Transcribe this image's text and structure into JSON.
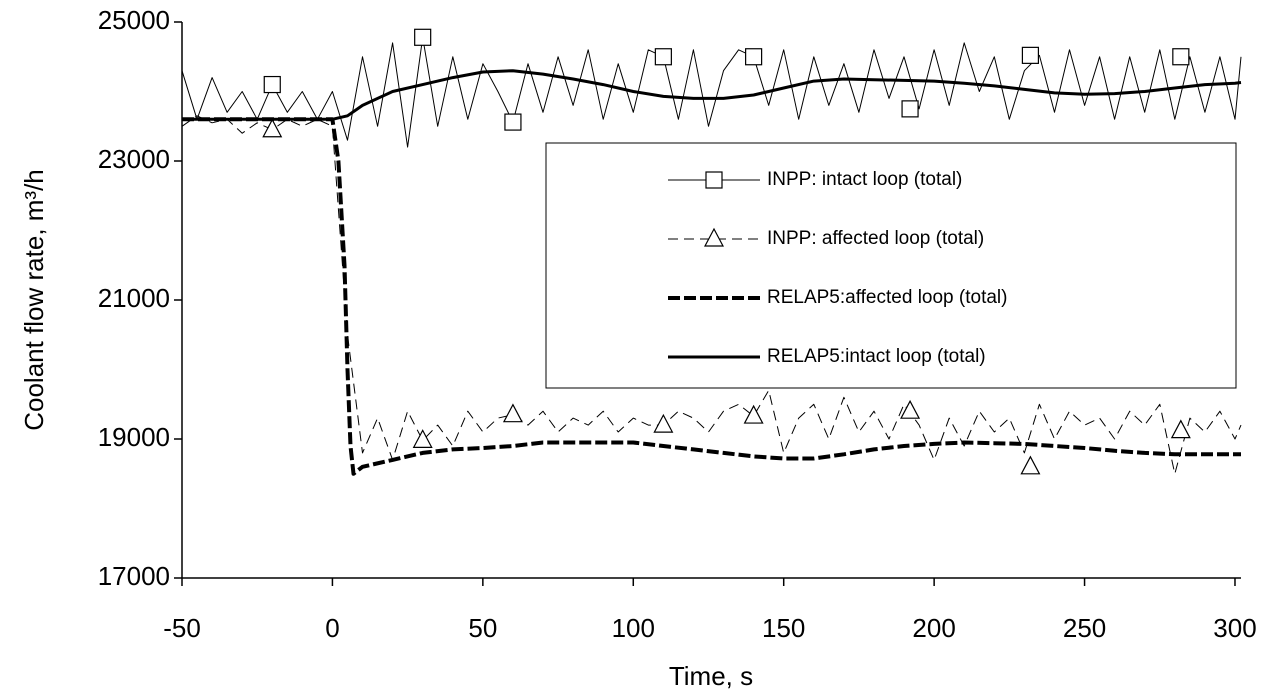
{
  "chart_data": {
    "type": "line",
    "xlabel": "Time, s",
    "ylabel": "Coolant flow rate, m³/h",
    "xlim": [
      -50,
      302
    ],
    "ylim": [
      17000,
      25000
    ],
    "xticks": [
      -50,
      0,
      50,
      100,
      150,
      200,
      250,
      300
    ],
    "yticks": [
      17000,
      19000,
      21000,
      23000,
      25000
    ],
    "grid": false,
    "legend": "right",
    "series": [
      {
        "name": "INPP: intact loop (total)",
        "color": "#000000",
        "width": 1,
        "dash": "none",
        "marker": "square",
        "x": [
          -50,
          -45,
          -40,
          -35,
          -30,
          -25,
          -20,
          -15,
          -10,
          -5,
          0,
          5,
          10,
          15,
          20,
          25,
          30,
          35,
          40,
          45,
          50,
          55,
          60,
          65,
          70,
          75,
          80,
          85,
          90,
          95,
          100,
          105,
          110,
          115,
          120,
          125,
          130,
          135,
          140,
          145,
          150,
          155,
          160,
          165,
          170,
          175,
          180,
          185,
          190,
          195,
          200,
          205,
          210,
          215,
          220,
          225,
          230,
          235,
          240,
          245,
          250,
          255,
          260,
          265,
          270,
          275,
          280,
          285,
          290,
          295,
          300,
          302
        ],
        "values": [
          24300,
          23600,
          24200,
          23700,
          24000,
          23600,
          24100,
          23700,
          24000,
          23600,
          24000,
          23300,
          24500,
          23500,
          24700,
          23200,
          24780,
          23500,
          24500,
          23600,
          24400,
          24000,
          23560,
          24400,
          23700,
          24500,
          23800,
          24600,
          23600,
          24400,
          23700,
          24600,
          24500,
          23600,
          24600,
          23500,
          24300,
          24600,
          24500,
          23800,
          24600,
          23600,
          24500,
          23800,
          24400,
          23700,
          24600,
          23900,
          24500,
          23750,
          24600,
          23800,
          24700,
          24000,
          24500,
          23600,
          24300,
          24520,
          23700,
          24600,
          23800,
          24500,
          23600,
          24500,
          23700,
          24600,
          23600,
          24500,
          23700,
          24500,
          23600,
          24500
        ],
        "markers": {
          "x": [
            -20,
            30,
            60,
            110,
            140,
            192,
            232,
            282
          ],
          "values": [
            24100,
            24780,
            23560,
            24500,
            24500,
            23750,
            24520,
            24500
          ]
        }
      },
      {
        "name": "INPP: affected loop (total)",
        "color": "#000000",
        "width": 1,
        "dash": "10 6",
        "marker": "triangle",
        "x": [
          -50,
          -45,
          -40,
          -35,
          -30,
          -25,
          -20,
          -15,
          -10,
          -5,
          0,
          5,
          10,
          15,
          20,
          25,
          30,
          35,
          40,
          45,
          50,
          55,
          60,
          65,
          70,
          75,
          80,
          85,
          90,
          95,
          100,
          105,
          110,
          115,
          120,
          125,
          130,
          135,
          140,
          145,
          150,
          155,
          160,
          165,
          170,
          175,
          180,
          185,
          190,
          195,
          200,
          205,
          210,
          215,
          220,
          225,
          230,
          235,
          240,
          245,
          250,
          255,
          260,
          265,
          270,
          275,
          280,
          285,
          290,
          295,
          300,
          302
        ],
        "values": [
          23500,
          23650,
          23550,
          23600,
          23400,
          23550,
          23450,
          23600,
          23500,
          23600,
          23500,
          20500,
          18800,
          19300,
          18700,
          19400,
          18980,
          19200,
          18900,
          19400,
          19100,
          19300,
          19350,
          19200,
          19400,
          19100,
          19300,
          19200,
          19400,
          19100,
          19300,
          19200,
          19200,
          19400,
          19300,
          19100,
          19400,
          19500,
          19330,
          19700,
          18800,
          19300,
          19500,
          19000,
          19600,
          19100,
          19400,
          19000,
          19500,
          19200,
          18700,
          19300,
          18900,
          19400,
          19100,
          19300,
          18800,
          19500,
          19000,
          19400,
          19200,
          19300,
          19000,
          19400,
          19200,
          19500,
          18500,
          19300,
          19100,
          19400,
          19000,
          19200
        ],
        "markers": {
          "x": [
            -20,
            30,
            60,
            110,
            140,
            192,
            232,
            282
          ],
          "values": [
            23450,
            18980,
            19350,
            19200,
            19330,
            19400,
            18600,
            19120
          ]
        }
      },
      {
        "name": "RELAP5:affected loop (total)",
        "color": "#000000",
        "width": 4,
        "dash": "12 4",
        "marker": "none",
        "x": [
          -50,
          -25,
          0,
          2,
          4,
          5,
          6,
          7,
          10,
          20,
          30,
          40,
          50,
          60,
          70,
          80,
          90,
          100,
          110,
          120,
          130,
          140,
          150,
          160,
          170,
          180,
          190,
          200,
          210,
          220,
          230,
          240,
          250,
          260,
          270,
          280,
          290,
          300,
          302
        ],
        "values": [
          23600,
          23600,
          23600,
          23000,
          21500,
          20000,
          18900,
          18500,
          18600,
          18700,
          18800,
          18850,
          18870,
          18900,
          18950,
          18950,
          18950,
          18950,
          18900,
          18850,
          18800,
          18750,
          18720,
          18720,
          18780,
          18850,
          18900,
          18930,
          18950,
          18940,
          18930,
          18900,
          18870,
          18830,
          18800,
          18780,
          18780,
          18780,
          18780
        ]
      },
      {
        "name": "RELAP5:intact loop (total)",
        "color": "#000000",
        "width": 3,
        "dash": "none",
        "marker": "none",
        "x": [
          -50,
          -25,
          0,
          5,
          10,
          20,
          30,
          40,
          50,
          60,
          70,
          80,
          90,
          100,
          110,
          120,
          130,
          140,
          150,
          160,
          170,
          180,
          190,
          200,
          210,
          220,
          230,
          240,
          250,
          260,
          270,
          280,
          290,
          300,
          302
        ],
        "values": [
          23600,
          23600,
          23600,
          23650,
          23800,
          24000,
          24100,
          24200,
          24280,
          24300,
          24250,
          24180,
          24100,
          24000,
          23930,
          23900,
          23900,
          23950,
          24050,
          24150,
          24180,
          24170,
          24160,
          24150,
          24120,
          24080,
          24030,
          23980,
          23960,
          23970,
          24000,
          24050,
          24100,
          24120,
          24130
        ]
      }
    ]
  }
}
